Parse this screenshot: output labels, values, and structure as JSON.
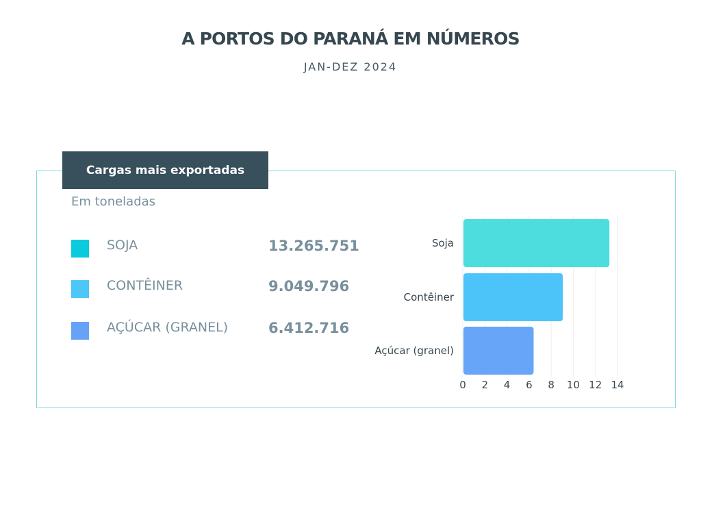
{
  "header": {
    "title": "A PORTOS DO PARANÁ EM NÚMEROS",
    "subtitle": "JAN-DEZ 2024"
  },
  "card": {
    "heading": "Cargas mais exportadas",
    "unit": "Em toneladas",
    "legend": [
      {
        "label": "SOJA",
        "value": "13.265.751",
        "color": "#0bcadd"
      },
      {
        "label": "CONTÊINER",
        "value": "9.049.796",
        "color": "#4dc6f8"
      },
      {
        "label": "AÇÚCAR (GRANEL)",
        "value": "6.412.716",
        "color": "#66a3f7"
      }
    ]
  },
  "chart_data": {
    "type": "bar",
    "orientation": "horizontal",
    "categories": [
      "Soja",
      "Contêiner",
      "Açúcar (granel)"
    ],
    "values": [
      13.27,
      9.05,
      6.41
    ],
    "colors": [
      "#4ddddf",
      "#4cc4fa",
      "#66a5f8"
    ],
    "xlim": [
      0,
      14
    ],
    "xticks": [
      "0",
      "2",
      "4",
      "6",
      "8",
      "10",
      "12",
      "14"
    ],
    "grid": true
  }
}
